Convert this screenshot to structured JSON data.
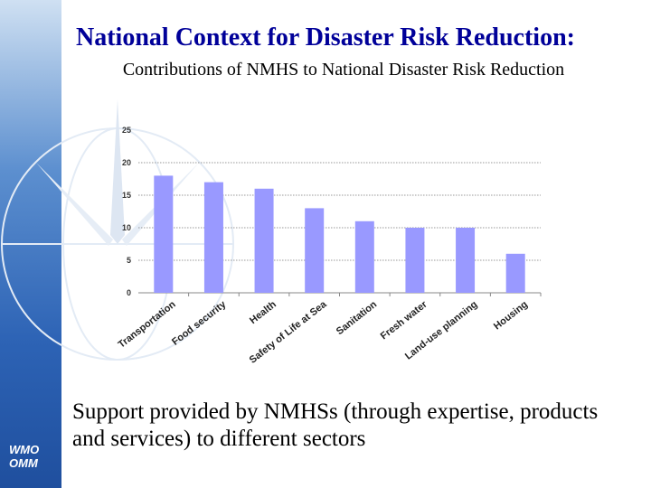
{
  "slide": {
    "title": "National Context for Disaster Risk Reduction:",
    "subtitle": "Contributions of NMHS to National Disaster Risk Reduction",
    "caption": "Support provided by NMHSs (through expertise, products and services) to different sectors",
    "logo_line1": "WMO",
    "logo_line2": "OMM"
  },
  "colors": {
    "title": "#000099",
    "bar": "#9999ff",
    "sidebar": "#2d63b5"
  },
  "chart_data": {
    "type": "bar",
    "categories": [
      "Transportation",
      "Food security",
      "Health",
      "Safety of Life at Sea",
      "Sanitation",
      "Fresh water",
      "Land-use planning",
      "Housing"
    ],
    "values": [
      18,
      17,
      16,
      13,
      11,
      10,
      10,
      6
    ],
    "title": "",
    "xlabel": "",
    "ylabel": "",
    "ylim": [
      0,
      25
    ],
    "yticks": [
      0,
      5,
      10,
      15,
      20,
      25
    ],
    "grid": true
  }
}
